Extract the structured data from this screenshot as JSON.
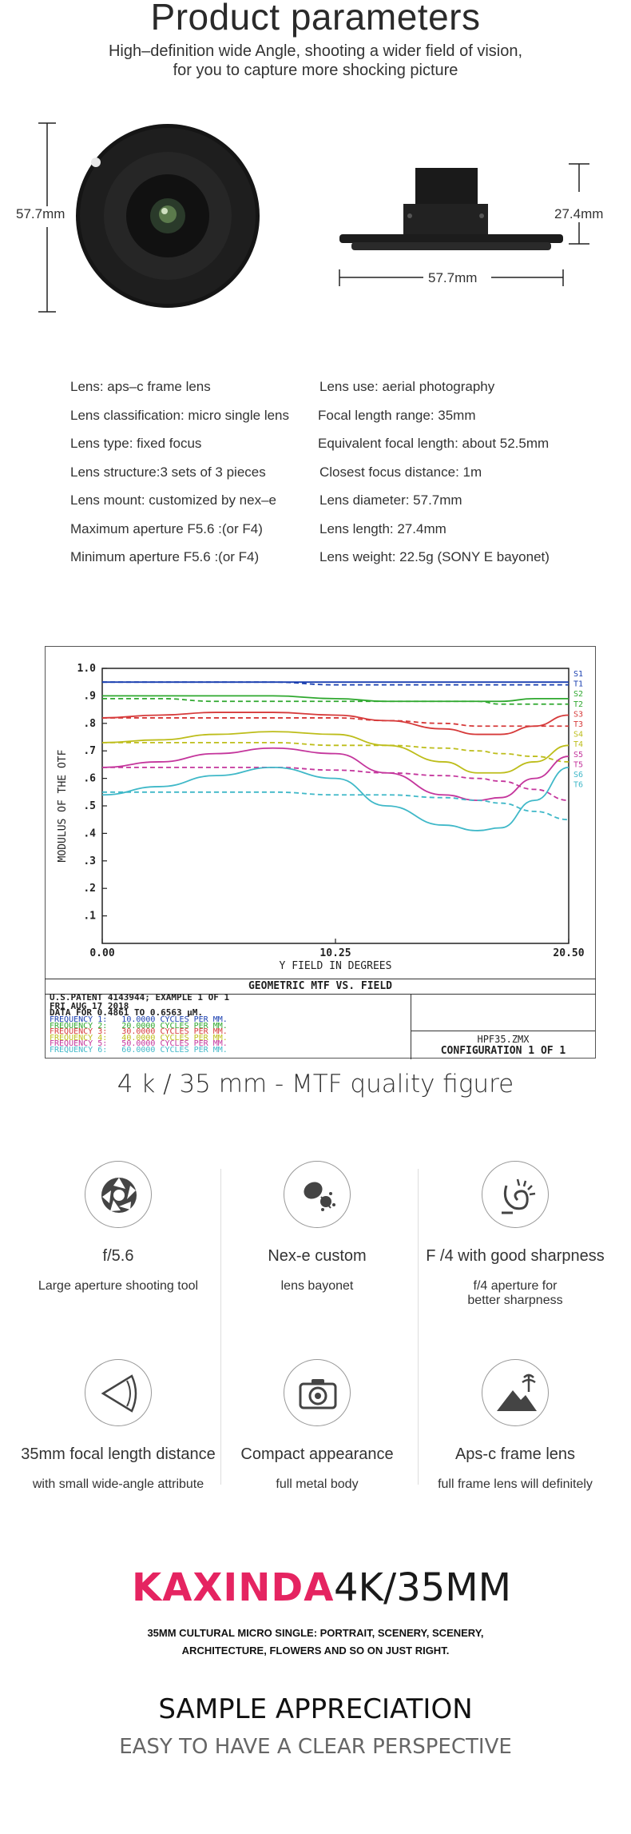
{
  "header": {
    "title": "Product parameters",
    "subtitle_line1": "High–definition wide Angle, shooting a wider field of vision,",
    "subtitle_line2": "for you to capture more shocking picture"
  },
  "dimensions": {
    "front_diameter": "57.7mm",
    "side_length": "27.4mm",
    "side_width": "57.7mm"
  },
  "specs": {
    "left": [
      "Lens: aps–c frame lens",
      "Lens classification: micro single lens",
      "Lens type: fixed focus",
      "Lens structure:3 sets of 3 pieces",
      "Lens mount: customized by nex–e",
      "Maximum aperture F5.6 :(or F4)",
      "Minimum aperture F5.6 :(or F4)"
    ],
    "right": [
      "Lens use: aerial photography",
      "Focal length range: 35mm",
      "Equivalent focal length: about 52.5mm",
      "Closest focus distance: 1m",
      "Lens diameter: 57.7mm",
      "Lens length: 27.4mm",
      "Lens weight: 22.5g (SONY E bayonet)"
    ]
  },
  "mtf": {
    "ylabel": "MODULUS OF THE OTF",
    "xlabel": "Y FIELD IN DEGREES",
    "ytick_labels": [
      "1.0",
      ".9",
      ".8",
      ".7",
      ".6",
      ".5",
      ".4",
      ".3",
      ".2",
      ".1"
    ],
    "xtick_labels": [
      "0.00",
      "10.25",
      "20.50"
    ],
    "footer_title": "GEOMETRIC MTF VS. FIELD",
    "patent": "U.S.PATENT 4143944; EXAMPLE 1 OF 1",
    "date": "FRI AUG 17 2018",
    "data_for": "DATA FOR 0.4861 TO 0.6563 µM.",
    "frequencies": [
      {
        "label": "FREQUENCY 1:   10.0000 CYCLES PER MM.",
        "color": "#1a3fb0"
      },
      {
        "label": "FREQUENCY 2:   20.0000 CYCLES PER MM.",
        "color": "#2fa82f"
      },
      {
        "label": "FREQUENCY 3:   30.0000 CYCLES PER MM.",
        "color": "#d63a3a"
      },
      {
        "label": "FREQUENCY 4:   40.0000 CYCLES PER MM.",
        "color": "#bdbd1a"
      },
      {
        "label": "FREQUENCY 5:   50.0000 CYCLES PER MM.",
        "color": "#c4359c"
      },
      {
        "label": "FREQUENCY 6:   60.0000 CYCLES PER MM.",
        "color": "#3fb8c8"
      }
    ],
    "file": "HPF35.ZMX",
    "config": "CONFIGURATION 1 OF 1"
  },
  "chart_data": {
    "type": "line",
    "title": "GEOMETRIC MTF VS. FIELD",
    "xlabel": "Y FIELD IN DEGREES",
    "ylabel": "MODULUS OF THE OTF",
    "xlim": [
      0,
      20.5
    ],
    "ylim": [
      0,
      1.0
    ],
    "x": [
      0,
      2.5,
      5,
      7.5,
      10.25,
      12.5,
      15,
      16.5,
      17.5,
      19,
      20.5
    ],
    "grid": false,
    "series": [
      {
        "name": "S1",
        "color": "#1a3fb0",
        "dash": false,
        "values": [
          0.95,
          0.95,
          0.95,
          0.95,
          0.95,
          0.95,
          0.95,
          0.95,
          0.95,
          0.95,
          0.95
        ]
      },
      {
        "name": "T1",
        "color": "#1a3fb0",
        "dash": true,
        "values": [
          0.95,
          0.95,
          0.95,
          0.95,
          0.94,
          0.94,
          0.94,
          0.94,
          0.94,
          0.94,
          0.94
        ]
      },
      {
        "name": "S2",
        "color": "#2fa82f",
        "dash": false,
        "values": [
          0.9,
          0.9,
          0.9,
          0.9,
          0.89,
          0.88,
          0.88,
          0.88,
          0.88,
          0.89,
          0.89
        ]
      },
      {
        "name": "T2",
        "color": "#2fa82f",
        "dash": true,
        "values": [
          0.89,
          0.89,
          0.88,
          0.88,
          0.88,
          0.88,
          0.88,
          0.88,
          0.87,
          0.87,
          0.87
        ]
      },
      {
        "name": "S3",
        "color": "#d63a3a",
        "dash": false,
        "values": [
          0.82,
          0.83,
          0.84,
          0.84,
          0.83,
          0.81,
          0.78,
          0.76,
          0.76,
          0.79,
          0.83
        ]
      },
      {
        "name": "T3",
        "color": "#d63a3a",
        "dash": true,
        "values": [
          0.82,
          0.82,
          0.82,
          0.82,
          0.82,
          0.81,
          0.8,
          0.79,
          0.79,
          0.79,
          0.79
        ]
      },
      {
        "name": "S4",
        "color": "#bdbd1a",
        "dash": false,
        "values": [
          0.73,
          0.74,
          0.76,
          0.77,
          0.76,
          0.72,
          0.66,
          0.62,
          0.62,
          0.66,
          0.72
        ]
      },
      {
        "name": "T4",
        "color": "#bdbd1a",
        "dash": true,
        "values": [
          0.73,
          0.73,
          0.73,
          0.73,
          0.72,
          0.72,
          0.71,
          0.7,
          0.69,
          0.68,
          0.66
        ]
      },
      {
        "name": "S5",
        "color": "#c4359c",
        "dash": false,
        "values": [
          0.64,
          0.66,
          0.69,
          0.71,
          0.69,
          0.62,
          0.54,
          0.52,
          0.53,
          0.6,
          0.68
        ]
      },
      {
        "name": "T5",
        "color": "#c4359c",
        "dash": true,
        "values": [
          0.64,
          0.64,
          0.64,
          0.64,
          0.63,
          0.62,
          0.61,
          0.6,
          0.59,
          0.56,
          0.52
        ]
      },
      {
        "name": "S6",
        "color": "#3fb8c8",
        "dash": false,
        "values": [
          0.54,
          0.57,
          0.61,
          0.64,
          0.6,
          0.5,
          0.43,
          0.41,
          0.42,
          0.52,
          0.64
        ]
      },
      {
        "name": "T6",
        "color": "#3fb8c8",
        "dash": true,
        "values": [
          0.55,
          0.55,
          0.55,
          0.55,
          0.54,
          0.54,
          0.53,
          0.52,
          0.51,
          0.48,
          0.45
        ]
      }
    ]
  },
  "mtf_caption": "4 k / 35 mm - MTF quality figure",
  "features": [
    {
      "icon": "aperture-icon",
      "title": "f/5.6",
      "sub1": "Large aperture shooting tool",
      "sub2": ""
    },
    {
      "icon": "lens-mount-icon",
      "title": "Nex-e custom",
      "sub1": "lens bayonet",
      "sub2": ""
    },
    {
      "icon": "sharpness-icon",
      "title": "F /4 with good sharpness",
      "sub1": "f/4 aperture for",
      "sub2": "better sharpness"
    },
    {
      "icon": "wide-angle-icon",
      "title": "35mm focal length distance",
      "sub1": "with small wide-angle attribute",
      "sub2": ""
    },
    {
      "icon": "camera-icon",
      "title": "Compact appearance",
      "sub1": "full metal body",
      "sub2": ""
    },
    {
      "icon": "landscape-icon",
      "title": "Aps-c frame lens",
      "sub1": "full frame lens will definitely",
      "sub2": ""
    }
  ],
  "brand": {
    "logo_text": "KAXINDA",
    "model": "4K/35MM",
    "desc_line1": "35MM CULTURAL MICRO SINGLE: PORTRAIT, SCENERY, SCENERY,",
    "desc_line2": "ARCHITECTURE, FLOWERS AND SO ON JUST RIGHT.",
    "accent_color": "#e52461"
  },
  "sample": {
    "title": "SAMPLE APPRECIATION",
    "subtitle": "EASY TO HAVE A CLEAR PERSPECTIVE"
  }
}
